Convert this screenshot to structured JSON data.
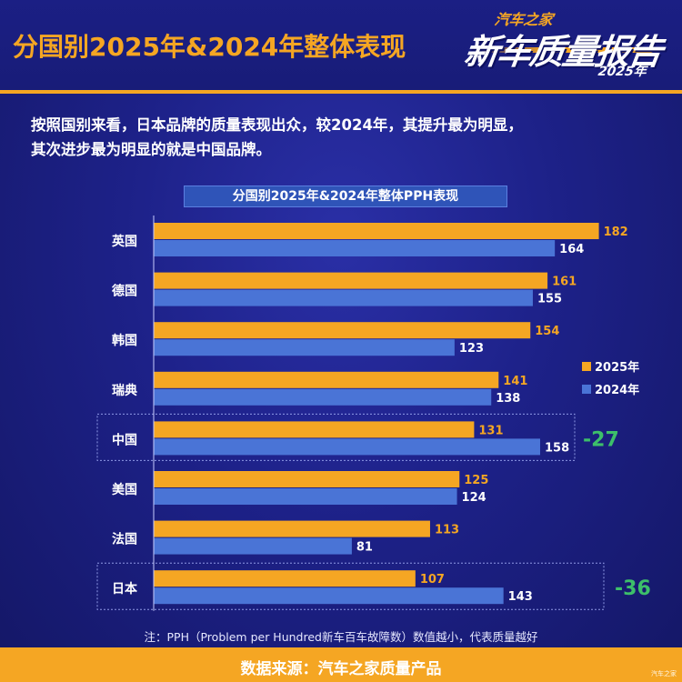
{
  "header": {
    "title": "分国别2025年&2024年整体表现",
    "logo": {
      "line1": "汽车之家",
      "line2": "新车质量报告",
      "line3": "2025年"
    }
  },
  "intro": {
    "line1": "按照国别来看，日本品牌的质量表现出众，较2024年，其提升最为明显，",
    "line2": "其次进步最为明显的就是中国品牌。"
  },
  "chart_data": {
    "type": "bar",
    "orientation": "horizontal",
    "title": "分国别2025年&2024年整体PPH表现",
    "categories": [
      "英国",
      "德国",
      "韩国",
      "瑞典",
      "中国",
      "美国",
      "法国",
      "日本"
    ],
    "series": [
      {
        "name": "2025年",
        "color": "#f5a623",
        "values": [
          182,
          161,
          154,
          141,
          131,
          125,
          113,
          107
        ]
      },
      {
        "name": "2024年",
        "color": "#4a74d6",
        "values": [
          164,
          155,
          123,
          138,
          158,
          124,
          81,
          143
        ]
      }
    ],
    "legend_position": "right",
    "grid": false,
    "highlighted": [
      {
        "category": "中国",
        "annotation": "-27"
      },
      {
        "category": "日本",
        "annotation": "-36"
      }
    ],
    "annotation_color": "#3dbf6a"
  },
  "note": "注：PPH（Problem per Hundred新车百车故障数）数值越小，代表质量越好",
  "footer": {
    "source": "数据来源：汽车之家质量产品",
    "watermark": "汽车之家"
  }
}
